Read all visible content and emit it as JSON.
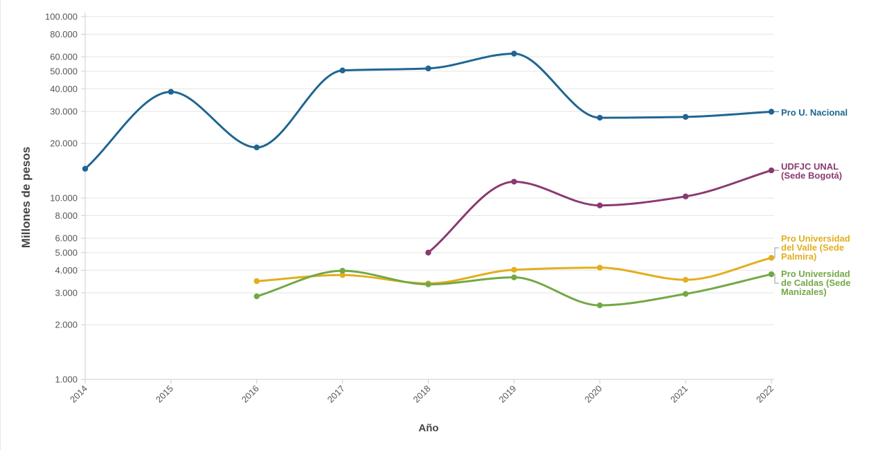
{
  "chart_data": {
    "type": "line",
    "xlabel": "Año",
    "ylabel": "Millones de pesos",
    "yscale": "log",
    "ylim": [
      1000,
      100000
    ],
    "grid": "horizontal",
    "legend": "inline labels at right end of lines",
    "x": [
      "2014",
      "2015",
      "2016",
      "2017",
      "2018",
      "2019",
      "2020",
      "2021",
      "2022"
    ],
    "y_ticks": [
      1000,
      2000,
      3000,
      4000,
      5000,
      6000,
      8000,
      10000,
      20000,
      30000,
      40000,
      50000,
      60000,
      80000,
      100000
    ],
    "y_tick_labels": [
      "1.000",
      "2.000",
      "3.000",
      "4.000",
      "5.000",
      "6.000",
      "8.000",
      "10.000",
      "20.000",
      "30.000",
      "40.000",
      "50.000",
      "60.000",
      "80.000",
      "100.000"
    ],
    "series": [
      {
        "name": "Pro U. Nacional",
        "label_lines": [
          "Pro U. Nacional"
        ],
        "color": "#1f6591",
        "values": [
          14500,
          38500,
          19000,
          50500,
          51800,
          62500,
          27700,
          28000,
          29900
        ]
      },
      {
        "name": "UDFJC UNAL (Sede Bogotá)",
        "label_lines": [
          "UDFJC UNAL",
          "(Sede Bogotá)"
        ],
        "color": "#8a3a70",
        "values": [
          null,
          null,
          null,
          null,
          5000,
          12300,
          9100,
          10200,
          14200
        ]
      },
      {
        "name": "Pro Universidad del Valle (Sede Palmira)",
        "label_lines": [
          "Pro Universidad",
          "del Valle (Sede",
          "Palmira)"
        ],
        "color": "#e2ae1e",
        "values": [
          null,
          null,
          3480,
          3760,
          3380,
          4020,
          4130,
          3540,
          4680
        ]
      },
      {
        "name": "Pro Universidad de Caldas (Sede Manizales)",
        "label_lines": [
          "Pro Universidad",
          "de Caldas (Sede",
          "Manizales)"
        ],
        "color": "#73a845",
        "values": [
          null,
          null,
          2870,
          3970,
          3340,
          3650,
          2560,
          2960,
          3800
        ]
      }
    ]
  }
}
